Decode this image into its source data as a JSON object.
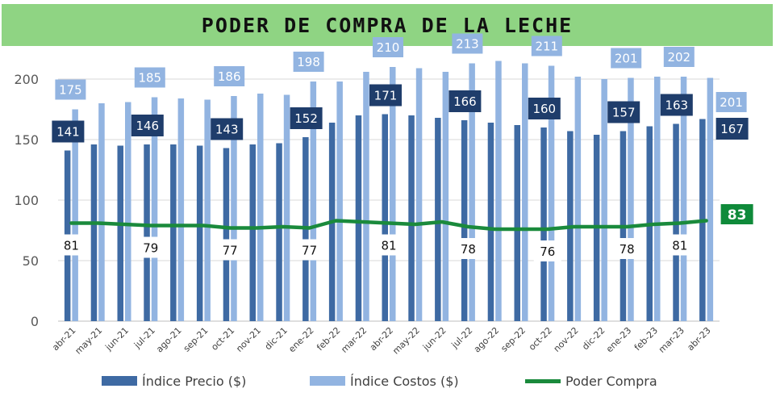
{
  "chart_data": {
    "type": "bar",
    "title": "PODER DE COMPRA DE LA LECHE",
    "categories": [
      "abr-21",
      "may-21",
      "jun-21",
      "jul-21",
      "ago-21",
      "sep-21",
      "oct-21",
      "nov-21",
      "dic-21",
      "ene-22",
      "feb-22",
      "mar-22",
      "abr-22",
      "may-22",
      "jun-22",
      "jul-22",
      "ago-22",
      "sep-22",
      "oct-22",
      "nov-22",
      "dic-22",
      "ene-23",
      "feb-23",
      "mar-23",
      "abr-23"
    ],
    "ylim": [
      0,
      220
    ],
    "yticks": [
      "0",
      "50",
      "100",
      "150",
      "200"
    ],
    "grid": true,
    "legend_position": "bottom",
    "series": [
      {
        "name": "Índice Precio ($)",
        "type": "bar",
        "color": "#3e6aa3",
        "values": [
          141,
          146,
          145,
          146,
          146,
          145,
          143,
          146,
          147,
          152,
          164,
          170,
          171,
          170,
          168,
          166,
          164,
          162,
          160,
          157,
          154,
          157,
          161,
          163,
          167
        ],
        "labeled_points": [
          {
            "category": "abr-21",
            "label": "141"
          },
          {
            "category": "jul-21",
            "label": "146"
          },
          {
            "category": "oct-21",
            "label": "143"
          },
          {
            "category": "ene-22",
            "label": "152"
          },
          {
            "category": "abr-22",
            "label": "171"
          },
          {
            "category": "jul-22",
            "label": "166"
          },
          {
            "category": "oct-22",
            "label": "160"
          },
          {
            "category": "ene-23",
            "label": "157"
          },
          {
            "category": "mar-23",
            "label": "163"
          },
          {
            "category": "abr-23",
            "label": "167"
          }
        ]
      },
      {
        "name": "Índice Costos ($)",
        "type": "bar",
        "color": "#92b4e1",
        "values": [
          175,
          180,
          181,
          185,
          184,
          183,
          186,
          188,
          187,
          198,
          198,
          206,
          210,
          209,
          206,
          213,
          215,
          213,
          211,
          202,
          200,
          201,
          202,
          202,
          201
        ],
        "labeled_points": [
          {
            "category": "abr-21",
            "label": "175"
          },
          {
            "category": "jul-21",
            "label": "185"
          },
          {
            "category": "oct-21",
            "label": "186"
          },
          {
            "category": "ene-22",
            "label": "198"
          },
          {
            "category": "abr-22",
            "label": "210"
          },
          {
            "category": "jul-22",
            "label": "213"
          },
          {
            "category": "oct-22",
            "label": "211"
          },
          {
            "category": "ene-23",
            "label": "201"
          },
          {
            "category": "mar-23",
            "label": "202"
          },
          {
            "category": "abr-23",
            "label": "201"
          }
        ]
      },
      {
        "name": "Poder Compra",
        "type": "line",
        "color": "#1a8a3c",
        "values": [
          81,
          81,
          80,
          79,
          79,
          79,
          77,
          77,
          78,
          77,
          83,
          82,
          81,
          80,
          82,
          78,
          76,
          76,
          76,
          78,
          78,
          78,
          80,
          81,
          83
        ],
        "labeled_points": [
          {
            "category": "abr-21",
            "label": "81"
          },
          {
            "category": "jul-21",
            "label": "79"
          },
          {
            "category": "oct-21",
            "label": "77"
          },
          {
            "category": "ene-22",
            "label": "77"
          },
          {
            "category": "abr-22",
            "label": "81"
          },
          {
            "category": "jul-22",
            "label": "78"
          },
          {
            "category": "oct-22",
            "label": "76"
          },
          {
            "category": "ene-23",
            "label": "78"
          },
          {
            "category": "mar-23",
            "label": "81"
          },
          {
            "category": "abr-23",
            "label": "83"
          }
        ]
      }
    ]
  }
}
